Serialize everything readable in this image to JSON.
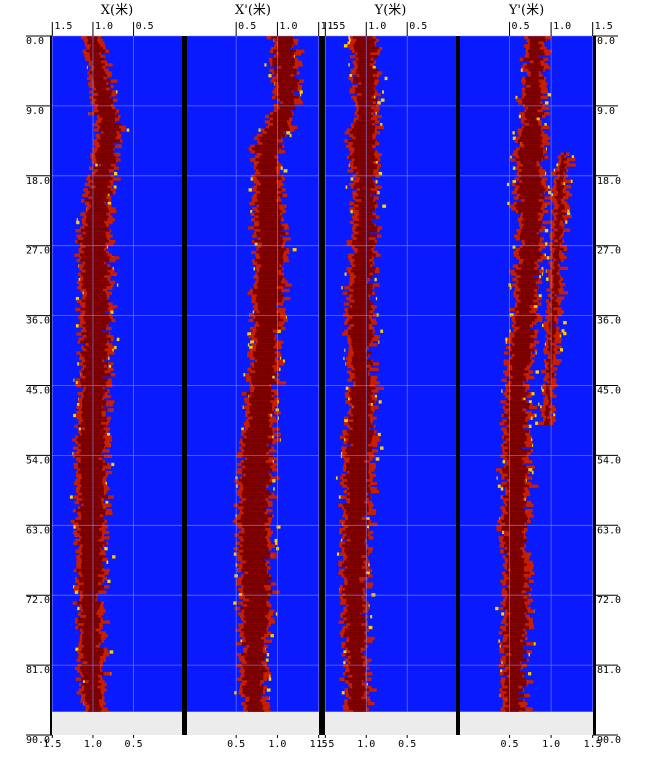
{
  "chart_data": {
    "type": "heatmap",
    "depth_axis": {
      "range": [
        0,
        90
      ],
      "ticks": [
        "0.0",
        "9.0",
        "18.0",
        "27.0",
        "36.0",
        "45.0",
        "54.0",
        "63.0",
        "72.0",
        "81.0",
        "90.0"
      ]
    },
    "data_end_depth": 87,
    "colors": {
      "background": "#0a1aff",
      "core": "#7a0000",
      "edge": "#c81e00",
      "fringe": "#ffcc00",
      "gap": "#ececec",
      "grid": "#8a92ff",
      "divider": "#000000"
    },
    "panels": [
      {
        "title": "X(米)",
        "top_ticks": [
          "1.5",
          "1.0",
          "0.5"
        ],
        "bottom_ticks": [
          "1.5",
          "1.0",
          "0.5"
        ],
        "profile": [
          {
            "d": 0,
            "c": 1.0,
            "w": 0.16
          },
          {
            "d": 5,
            "c": 0.92,
            "w": 0.18
          },
          {
            "d": 12,
            "c": 0.8,
            "w": 0.22
          },
          {
            "d": 16,
            "c": 0.85,
            "w": 0.18
          },
          {
            "d": 22,
            "c": 0.95,
            "w": 0.26
          },
          {
            "d": 27,
            "c": 0.98,
            "w": 0.32
          },
          {
            "d": 36,
            "c": 0.96,
            "w": 0.26
          },
          {
            "d": 45,
            "c": 0.98,
            "w": 0.28
          },
          {
            "d": 54,
            "c": 1.02,
            "w": 0.28
          },
          {
            "d": 63,
            "c": 1.02,
            "w": 0.3
          },
          {
            "d": 72,
            "c": 1.03,
            "w": 0.24
          },
          {
            "d": 81,
            "c": 1.02,
            "w": 0.2
          },
          {
            "d": 87,
            "c": 0.98,
            "w": 0.18
          }
        ]
      },
      {
        "title": "X'(米)",
        "top_ticks": [
          "0.5",
          "1.0",
          "1.5"
        ],
        "bottom_ticks": [
          "0.5",
          "1.0",
          "1.5"
        ],
        "profile": [
          {
            "d": 0,
            "c": 1.08,
            "w": 0.22
          },
          {
            "d": 9,
            "c": 1.12,
            "w": 0.2
          },
          {
            "d": 14,
            "c": 0.88,
            "w": 0.26
          },
          {
            "d": 18,
            "c": 0.88,
            "w": 0.24
          },
          {
            "d": 27,
            "c": 0.92,
            "w": 0.3
          },
          {
            "d": 36,
            "c": 0.88,
            "w": 0.28
          },
          {
            "d": 45,
            "c": 0.82,
            "w": 0.26
          },
          {
            "d": 54,
            "c": 0.74,
            "w": 0.3
          },
          {
            "d": 63,
            "c": 0.72,
            "w": 0.32
          },
          {
            "d": 72,
            "c": 0.74,
            "w": 0.28
          },
          {
            "d": 81,
            "c": 0.72,
            "w": 0.24
          },
          {
            "d": 87,
            "c": 0.72,
            "w": 0.2
          }
        ]
      },
      {
        "title": "Y(米)",
        "top_ticks": [
          "1.5",
          "1.0",
          "0.5"
        ],
        "bottom_ticks": [
          "1.5",
          "1.0",
          "0.5"
        ],
        "profile": [
          {
            "d": 0,
            "c": 1.02,
            "w": 0.24
          },
          {
            "d": 9,
            "c": 1.0,
            "w": 0.2
          },
          {
            "d": 14,
            "c": 1.05,
            "w": 0.3
          },
          {
            "d": 18,
            "c": 1.0,
            "w": 0.2
          },
          {
            "d": 27,
            "c": 1.02,
            "w": 0.22
          },
          {
            "d": 36,
            "c": 1.08,
            "w": 0.22
          },
          {
            "d": 45,
            "c": 1.05,
            "w": 0.24
          },
          {
            "d": 54,
            "c": 1.1,
            "w": 0.26
          },
          {
            "d": 63,
            "c": 1.12,
            "w": 0.24
          },
          {
            "d": 72,
            "c": 1.15,
            "w": 0.22
          },
          {
            "d": 81,
            "c": 1.12,
            "w": 0.2
          },
          {
            "d": 87,
            "c": 1.1,
            "w": 0.18
          }
        ]
      },
      {
        "title": "Y'(米)",
        "top_ticks": [
          "0.5",
          "1.0",
          "1.5"
        ],
        "bottom_ticks": [
          "0.5",
          "1.0",
          "1.5"
        ],
        "profile": [
          {
            "d": 0,
            "c": 0.82,
            "w": 0.16
          },
          {
            "d": 9,
            "c": 0.78,
            "w": 0.16
          },
          {
            "d": 18,
            "c": 0.74,
            "w": 0.26
          },
          {
            "d": 27,
            "c": 0.76,
            "w": 0.22
          },
          {
            "d": 36,
            "c": 0.68,
            "w": 0.2
          },
          {
            "d": 45,
            "c": 0.6,
            "w": 0.2
          },
          {
            "d": 54,
            "c": 0.58,
            "w": 0.24
          },
          {
            "d": 63,
            "c": 0.56,
            "w": 0.24
          },
          {
            "d": 72,
            "c": 0.58,
            "w": 0.22
          },
          {
            "d": 81,
            "c": 0.56,
            "w": 0.2
          },
          {
            "d": 87,
            "c": 0.55,
            "w": 0.18
          }
        ],
        "secondary_profile": [
          {
            "d": 15,
            "c": 1.15,
            "w": 0.05
          },
          {
            "d": 18,
            "c": 1.12,
            "w": 0.07
          },
          {
            "d": 27,
            "c": 1.08,
            "w": 0.07
          },
          {
            "d": 36,
            "c": 1.02,
            "w": 0.06
          },
          {
            "d": 45,
            "c": 0.98,
            "w": 0.05
          },
          {
            "d": 50,
            "c": 0.95,
            "w": 0.04
          }
        ]
      }
    ]
  }
}
